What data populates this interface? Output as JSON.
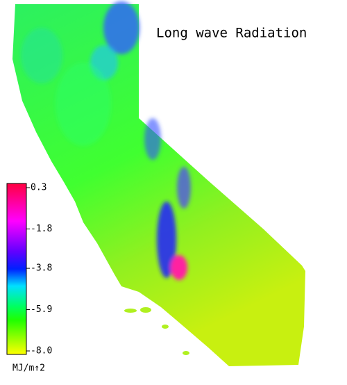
{
  "title": "Long wave Radiation",
  "colorbar": {
    "unit": "MJ/m↑2",
    "range": [
      -8.0,
      0.3
    ],
    "ticks": [
      0.3,
      -1.8,
      -3.8,
      -5.9,
      {
        "value": -8.0,
        "label": "-8.0"
      }
    ]
  }
}
